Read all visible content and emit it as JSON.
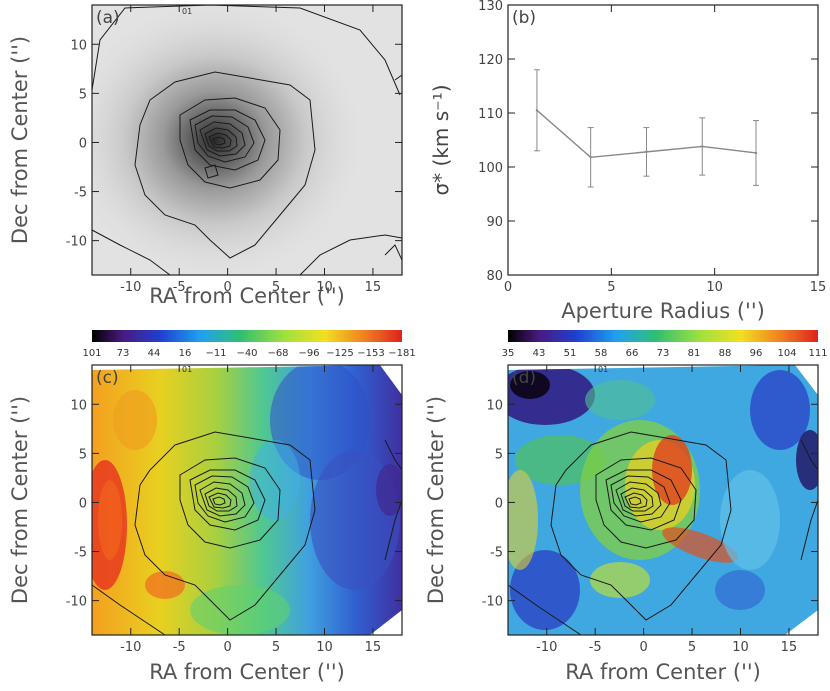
{
  "chart_data": [
    {
      "panel": "a",
      "type": "heatmap",
      "label": "(a)",
      "colormap": "grayscale",
      "xlabel": "RA from Center ('')",
      "ylabel": "Dec from Center ('')",
      "xlim": [
        -14,
        18
      ],
      "ylim": [
        -13.5,
        14
      ],
      "xticks": [
        "-10",
        "-5",
        "0",
        "5",
        "10",
        "15"
      ],
      "yticks": [
        "-10",
        "-5",
        "0",
        "5",
        "10"
      ],
      "marker": "01",
      "contour_levels": 9
    },
    {
      "panel": "b",
      "type": "line",
      "label": "(b)",
      "xlabel": "Aperture Radius ('')",
      "ylabel": "σ* (km s⁻¹)",
      "xlim": [
        0,
        15
      ],
      "ylim": [
        80,
        130
      ],
      "xticks": [
        "0",
        "5",
        "10",
        "15"
      ],
      "yticks": [
        "80",
        "90",
        "100",
        "110",
        "120",
        "130"
      ],
      "series": [
        {
          "name": "sigma",
          "x": [
            1.4,
            4.0,
            6.7,
            9.4,
            12.0
          ],
          "y": [
            110.5,
            101.8,
            102.8,
            103.8,
            102.6
          ],
          "err": [
            7.5,
            5.5,
            4.5,
            5.3,
            6.0
          ]
        }
      ]
    },
    {
      "panel": "c",
      "type": "heatmap",
      "label": "(c)",
      "colormap": "velocity",
      "colorbar_labels": [
        "101",
        "73",
        "44",
        "16",
        "−11",
        "−40",
        "−68",
        "−96",
        "−125",
        "−153",
        "−181"
      ],
      "xlabel": "RA from Center ('')",
      "ylabel": "Dec from Center ('')",
      "xlim": [
        -14,
        18
      ],
      "ylim": [
        -13.5,
        14
      ],
      "xticks": [
        "-10",
        "-5",
        "0",
        "5",
        "10",
        "15"
      ],
      "yticks": [
        "-10",
        "-5",
        "0",
        "5",
        "10"
      ],
      "marker": "01"
    },
    {
      "panel": "d",
      "type": "heatmap",
      "label": "(d)",
      "colormap": "dispersion",
      "colorbar_labels": [
        "35",
        "43",
        "51",
        "58",
        "66",
        "73",
        "81",
        "88",
        "96",
        "104",
        "111"
      ],
      "xlabel": "RA from Center ('')",
      "ylabel": "Dec from Center ('')",
      "xlim": [
        -14,
        18
      ],
      "ylim": [
        -13.5,
        14
      ],
      "xticks": [
        "-10",
        "-5",
        "0",
        "5",
        "10",
        "15"
      ],
      "yticks": [
        "-10",
        "-5",
        "0",
        "5",
        "10"
      ],
      "marker": "01"
    }
  ],
  "colors": {
    "axis": "#222222",
    "text": "#333333",
    "contour": "#1a1a1a",
    "errorbar": "#888888"
  }
}
